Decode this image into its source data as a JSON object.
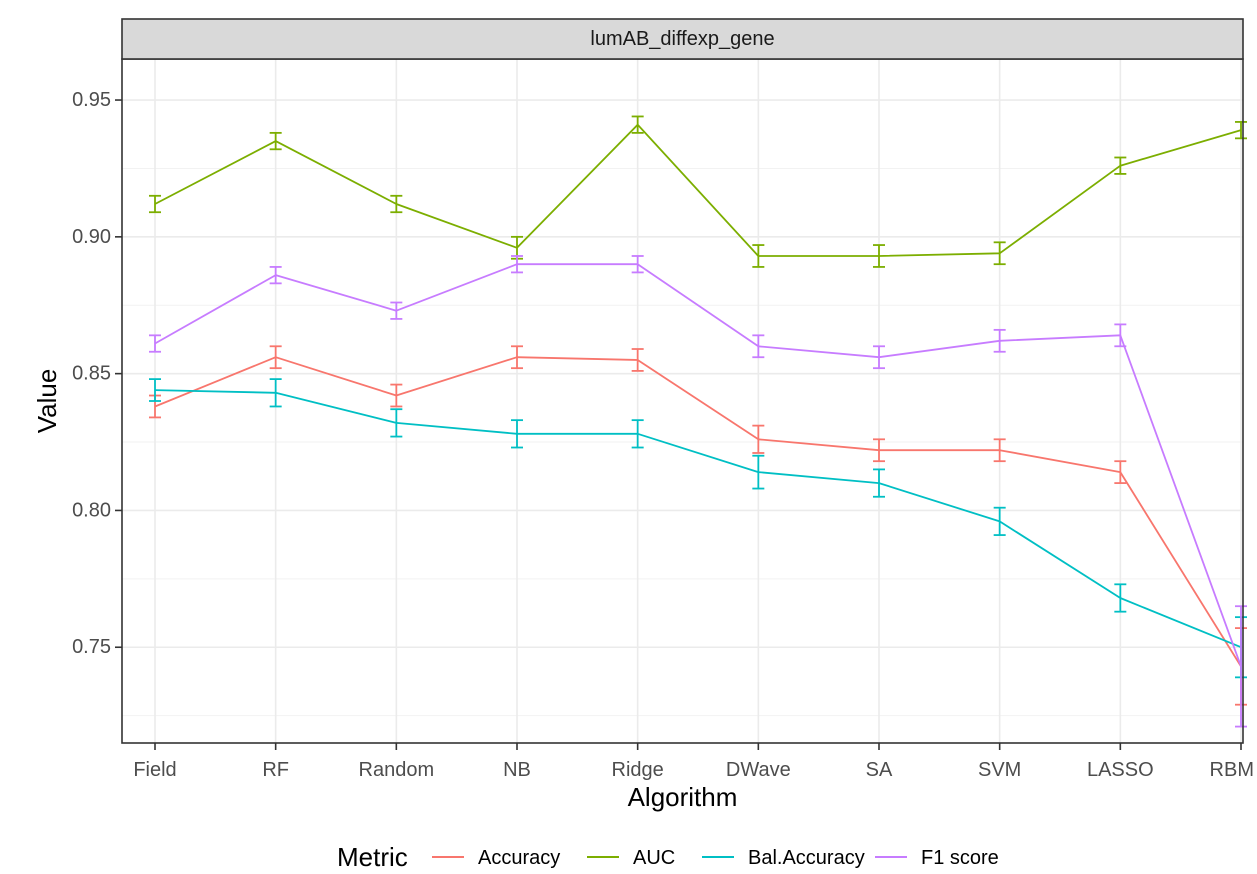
{
  "chart_data": {
    "type": "line",
    "facet_label": "lumAB_diffexp_gene",
    "xlabel": "Algorithm",
    "ylabel": "Value",
    "categories": [
      "Field",
      "RF",
      "Random",
      "NB",
      "Ridge",
      "DWave",
      "SA",
      "SVM",
      "LASSO",
      "RBM"
    ],
    "ylim": [
      0.715,
      0.965
    ],
    "yticks": [
      0.75,
      0.8,
      0.85,
      0.9,
      0.95
    ],
    "ytick_labels": [
      "0.75",
      "0.80",
      "0.85",
      "0.90",
      "0.95"
    ],
    "grid": true,
    "error_bars": true,
    "legend": {
      "title": "Metric",
      "placement": "bottom"
    },
    "series": [
      {
        "name": "Accuracy",
        "color": "#F8766D",
        "values": [
          0.838,
          0.856,
          0.842,
          0.856,
          0.855,
          0.826,
          0.822,
          0.822,
          0.814,
          0.743
        ],
        "err": [
          0.004,
          0.004,
          0.004,
          0.004,
          0.004,
          0.005,
          0.004,
          0.004,
          0.004,
          0.014
        ]
      },
      {
        "name": "AUC",
        "color": "#7CAE00",
        "values": [
          0.912,
          0.935,
          0.912,
          0.896,
          0.941,
          0.893,
          0.893,
          0.894,
          0.926,
          0.939
        ],
        "err": [
          0.003,
          0.003,
          0.003,
          0.004,
          0.003,
          0.004,
          0.004,
          0.004,
          0.003,
          0.003
        ]
      },
      {
        "name": "Bal.Accuracy",
        "color": "#00BFC4",
        "values": [
          0.844,
          0.843,
          0.832,
          0.828,
          0.828,
          0.814,
          0.81,
          0.796,
          0.768,
          0.75
        ],
        "err": [
          0.004,
          0.005,
          0.005,
          0.005,
          0.005,
          0.006,
          0.005,
          0.005,
          0.005,
          0.011
        ]
      },
      {
        "name": "F1 score",
        "color": "#C77CFF",
        "values": [
          0.861,
          0.886,
          0.873,
          0.89,
          0.89,
          0.86,
          0.856,
          0.862,
          0.864,
          0.743
        ],
        "err": [
          0.003,
          0.003,
          0.003,
          0.003,
          0.003,
          0.004,
          0.004,
          0.004,
          0.004,
          0.022
        ]
      }
    ]
  }
}
